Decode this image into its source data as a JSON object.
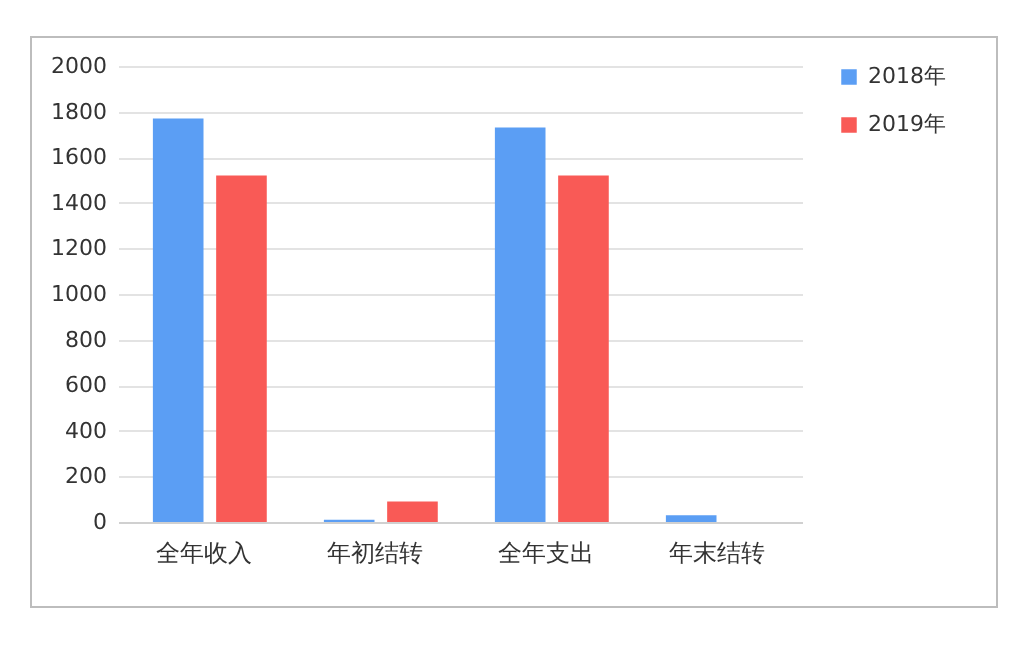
{
  "chart_data": {
    "type": "bar",
    "categories": [
      "全年收入",
      "年初结转",
      "全年支出",
      "年末结转"
    ],
    "series": [
      {
        "name": "2018年",
        "color": "#5b9ef4",
        "values": [
          1770,
          10,
          1730,
          30
        ]
      },
      {
        "name": "2019年",
        "color": "#f95a56",
        "values": [
          1520,
          90,
          1520,
          0
        ]
      }
    ],
    "ylim": [
      0,
      2000
    ],
    "yticks": [
      0,
      200,
      400,
      600,
      800,
      1000,
      1200,
      1400,
      1600,
      1800,
      2000
    ],
    "grid": "y",
    "legend": "right"
  }
}
